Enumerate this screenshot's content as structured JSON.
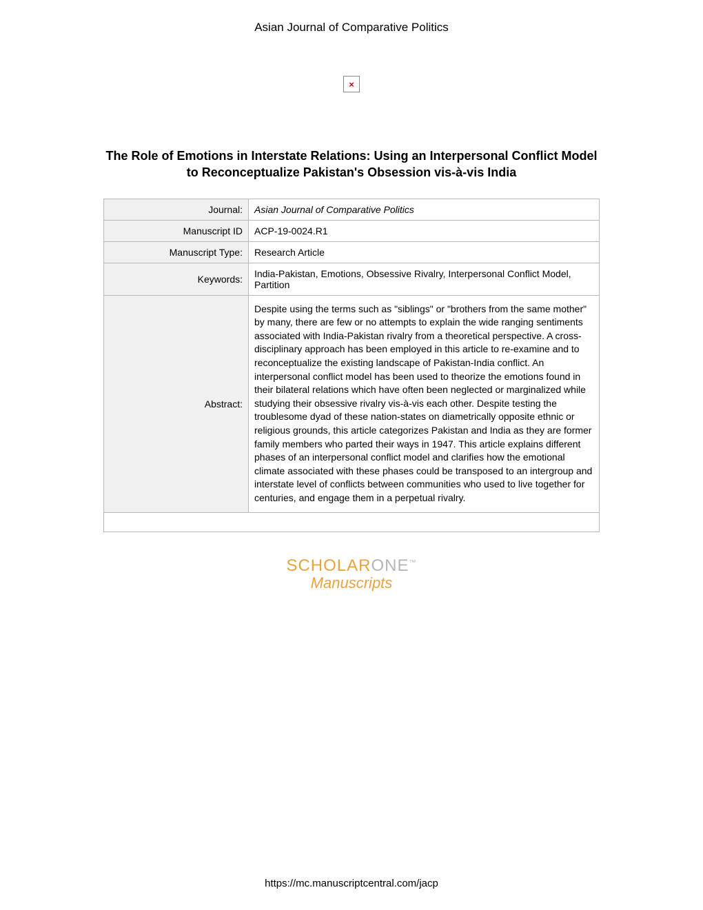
{
  "header": {
    "journal_name": "Asian Journal of Comparative Politics"
  },
  "broken_image": {
    "glyph": "×",
    "color": "#cc0000",
    "border_color": "#888888"
  },
  "article": {
    "title": "The Role of Emotions in Interstate Relations: Using an Interpersonal Conflict Model to Reconceptualize Pakistan's Obsession vis-à-vis India"
  },
  "meta_table": {
    "border_color": "#b8b8b8",
    "label_bg": "#f0f0f0",
    "value_bg": "#ffffff",
    "font_size": 14,
    "rows": {
      "journal": {
        "label": "Journal:",
        "value": "Asian Journal of Comparative Politics",
        "italic": true
      },
      "manuscript_id": {
        "label": "Manuscript ID",
        "value": "ACP-19-0024.R1"
      },
      "manuscript_type": {
        "label": "Manuscript Type:",
        "value": "Research Article"
      },
      "keywords": {
        "label": "Keywords:",
        "value": "India-Pakistan, Emotions, Obsessive Rivalry, Interpersonal Conflict Model, Partition"
      },
      "abstract": {
        "label": "Abstract:",
        "value": "Despite using the terms such as \"siblings\" or \"brothers from the same mother\" by many, there are few or no attempts to explain the wide ranging sentiments associated with India-Pakistan rivalry from a theoretical perspective. A cross-disciplinary approach has been employed in this article to re-examine and to reconceptualize the existing landscape of Pakistan-India conflict. An interpersonal conflict model has been used to theorize the emotions found in their bilateral relations which have often been neglected or marginalized while studying their obsessive rivalry vis-à-vis each other. Despite testing the troublesome dyad of these nation-states on diametrically opposite ethnic or religious grounds, this article categorizes Pakistan and India as they are former family members who parted their ways in 1947. This article explains different phases of an interpersonal conflict model and clarifies how the emotional climate associated with these phases could be transposed to an intergroup and interstate level of conflicts between communities who used to live together for centuries, and engage them in a perpetual rivalry."
      }
    }
  },
  "scholarone": {
    "scholar_text": "SCHOLAR",
    "one_text": "ONE",
    "tm_text": "™",
    "manuscripts_text": "Manuscripts",
    "scholar_color": "#e8a33d",
    "one_color": "#b5b5b5"
  },
  "footer": {
    "url": "https://mc.manuscriptcentral.com/jacp"
  }
}
